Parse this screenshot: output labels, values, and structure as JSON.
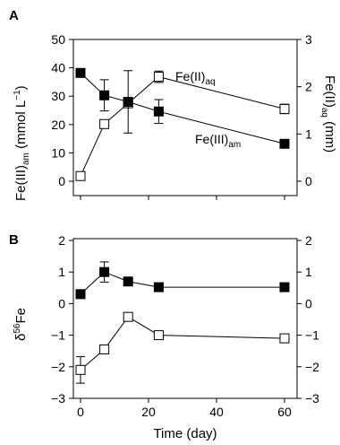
{
  "chart_data": [
    {
      "panel": "A",
      "type": "line",
      "x": [
        0,
        7,
        14,
        23,
        60
      ],
      "ylim": [
        0,
        50
      ],
      "y2lim": [
        0,
        3
      ],
      "yticks": [
        0,
        10,
        20,
        30,
        40,
        50
      ],
      "y2ticks": [
        0,
        1,
        2,
        3
      ],
      "ylabel": {
        "main": "Fe(III)",
        "sub": "am",
        "rest": " (mmol L",
        "sup": "−1",
        "end": ")"
      },
      "y2label": {
        "main": "Fe(II)",
        "sub": "aq",
        "rest": " (mm)"
      },
      "series": [
        {
          "name": {
            "main": "Fe(III)",
            "sub": "am"
          },
          "axis": "left",
          "marker": "filled-square",
          "values": [
            38.2,
            30.3,
            28.0,
            24.6,
            13.2
          ],
          "err": [
            0,
            5.5,
            11.0,
            4.2,
            0
          ]
        },
        {
          "name": {
            "main": "Fe(II)",
            "sub": "aq"
          },
          "axis": "right",
          "marker": "open-square",
          "values": [
            0.11,
            1.21,
            1.65,
            2.21,
            1.53
          ],
          "err": [
            0,
            0,
            0,
            0.12,
            0.1
          ]
        }
      ]
    },
    {
      "panel": "B",
      "type": "line",
      "x": [
        0,
        7,
        14,
        23,
        60
      ],
      "xlim": [
        0,
        60
      ],
      "xticks": [
        0,
        20,
        40,
        60
      ],
      "ylim": [
        -3,
        2
      ],
      "y2lim": [
        -3,
        2
      ],
      "yticks": [
        -3,
        -2,
        -1,
        0,
        1,
        2
      ],
      "y2ticks": [
        -3,
        -2,
        -1,
        0,
        1,
        2
      ],
      "tick_minus": "−",
      "ylabel": {
        "pre": "δ",
        "sup": "56",
        "main": "Fe"
      },
      "xlabel": "Time (day)",
      "series": [
        {
          "marker": "filled-square",
          "values": [
            0.3,
            1.0,
            0.7,
            0.52,
            0.52
          ],
          "err": [
            0,
            0.32,
            0,
            0,
            0
          ]
        },
        {
          "marker": "open-square",
          "values": [
            -2.1,
            -1.45,
            -0.42,
            -1.0,
            -1.1
          ],
          "err": [
            0.42,
            0,
            0,
            0,
            0
          ]
        }
      ]
    }
  ]
}
